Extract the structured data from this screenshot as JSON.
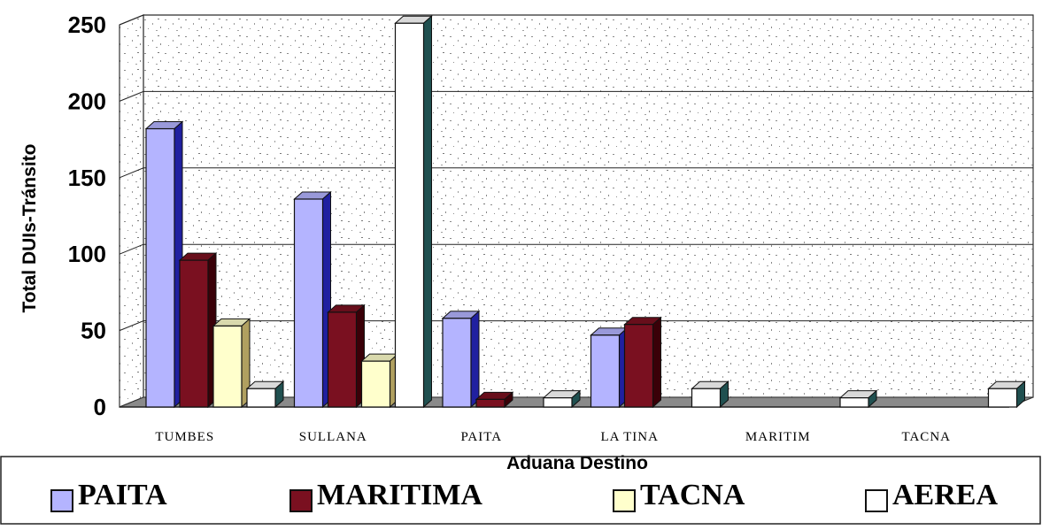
{
  "chart_data": {
    "type": "bar",
    "title": "",
    "xlabel": "Aduana Destino",
    "ylabel": "Total DUIs-Tránsito",
    "ylim": [
      0,
      250
    ],
    "yticks": [
      0,
      50,
      100,
      150,
      200,
      250
    ],
    "grid": true,
    "legend_position": "bottom",
    "categories": [
      "TUMBES",
      "SULLANA",
      "PAITA",
      "LA TINA",
      "MARITIM",
      "TACNA"
    ],
    "series": [
      {
        "name": "PAITA",
        "color": "#b4b4ff",
        "values": [
          182,
          136,
          58,
          47,
          0,
          0
        ]
      },
      {
        "name": "MARITIMA",
        "color": "#7a1020",
        "values": [
          96,
          62,
          5,
          54,
          0,
          0
        ]
      },
      {
        "name": "TACNA",
        "color": "#ffffcc",
        "values": [
          53,
          30,
          0,
          0,
          0,
          0
        ]
      },
      {
        "name": "AEREA",
        "color": "#ffffff",
        "values": [
          12,
          251,
          6,
          12,
          6,
          12
        ]
      }
    ]
  }
}
